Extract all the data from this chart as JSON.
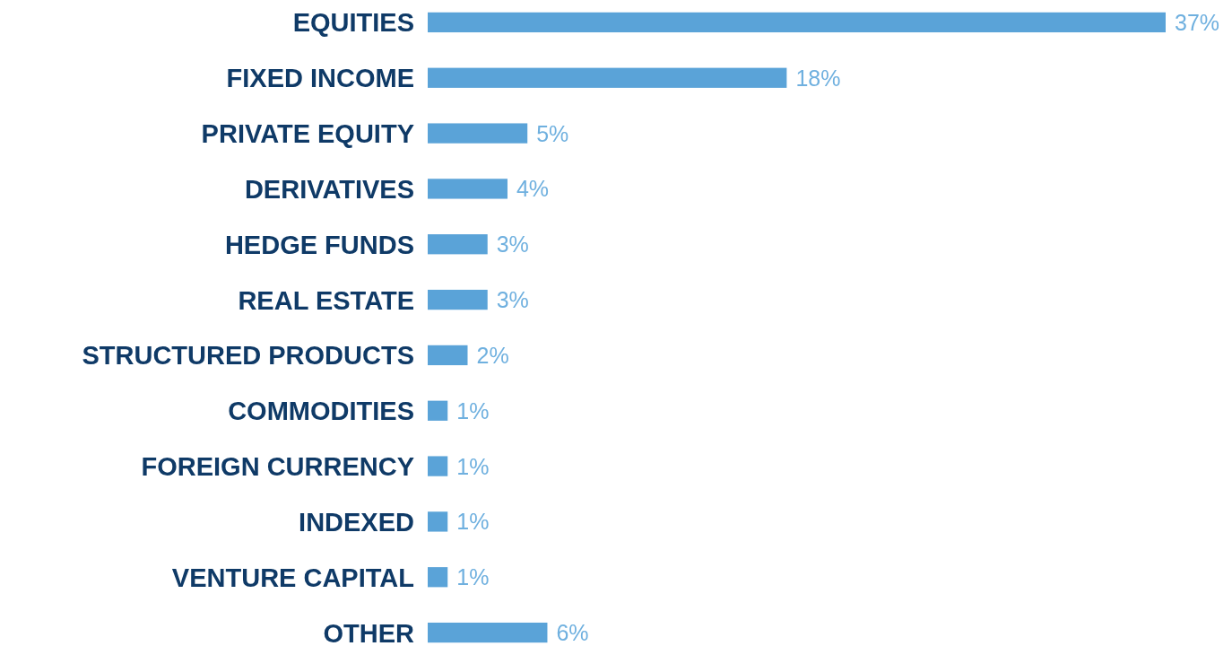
{
  "chart_data": {
    "type": "bar",
    "orientation": "horizontal",
    "categories": [
      "EQUITIES",
      "FIXED INCOME",
      "PRIVATE EQUITY",
      "DERIVATIVES",
      "HEDGE FUNDS",
      "REAL ESTATE",
      "STRUCTURED PRODUCTS",
      "COMMODITIES",
      "FOREIGN CURRENCY",
      "INDEXED",
      "VENTURE CAPITAL",
      "OTHER"
    ],
    "values": [
      37,
      18,
      5,
      4,
      3,
      3,
      2,
      1,
      1,
      1,
      1,
      6
    ],
    "value_labels": [
      "37%",
      "18%",
      "5%",
      "4%",
      "3%",
      "3%",
      "2%",
      "1%",
      "1%",
      "1%",
      "1%",
      "6%"
    ],
    "color": "#5aa3d8"
  }
}
